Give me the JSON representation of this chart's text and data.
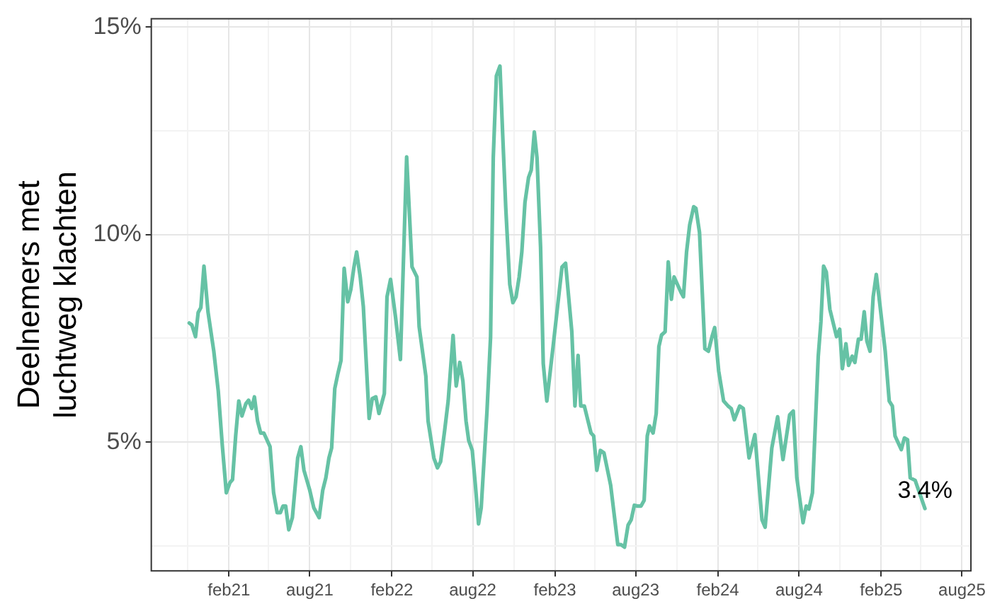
{
  "chart_data": {
    "type": "line",
    "ylabel": "Deelnemers met luchtweg klachten",
    "x": [
      "2020-11-04",
      "2020-11-10",
      "2020-11-18",
      "2020-11-24",
      "2020-11-30",
      "2020-12-07",
      "2020-12-16",
      "2020-12-29",
      "2021-01-08",
      "2021-01-17",
      "2021-01-26",
      "2021-02-03",
      "2021-02-09",
      "2021-02-16",
      "2021-02-23",
      "2021-03-02",
      "2021-03-11",
      "2021-03-17",
      "2021-03-24",
      "2021-03-30",
      "2021-04-06",
      "2021-04-13",
      "2021-04-20",
      "2021-05-04",
      "2021-05-12",
      "2021-05-20",
      "2021-05-27",
      "2021-06-02",
      "2021-06-08",
      "2021-06-15",
      "2021-06-23",
      "2021-07-05",
      "2021-07-12",
      "2021-07-19",
      "2021-08-01",
      "2021-08-10",
      "2021-08-22",
      "2021-08-30",
      "2021-09-06",
      "2021-09-13",
      "2021-09-19",
      "2021-09-26",
      "2021-10-03",
      "2021-10-10",
      "2021-10-17",
      "2021-10-25",
      "2021-11-01",
      "2021-11-08",
      "2021-11-14",
      "2021-11-22",
      "2021-11-29",
      "2021-12-12",
      "2021-12-19",
      "2021-12-27",
      "2022-01-03",
      "2022-01-15",
      "2022-01-21",
      "2022-01-29",
      "2022-02-09",
      "2022-02-20",
      "2022-03-06",
      "2022-03-18",
      "2022-03-29",
      "2022-04-03",
      "2022-04-18",
      "2022-04-23",
      "2022-05-06",
      "2022-05-14",
      "2022-05-21",
      "2022-05-30",
      "2022-06-07",
      "2022-06-18",
      "2022-06-25",
      "2022-07-03",
      "2022-07-10",
      "2022-07-17",
      "2022-07-23",
      "2022-07-31",
      "2022-08-07",
      "2022-08-14",
      "2022-08-20",
      "2022-09-02",
      "2022-09-10",
      "2022-09-16",
      "2022-09-23",
      "2022-10-01",
      "2022-10-07",
      "2022-10-14",
      "2022-10-23",
      "2022-10-30",
      "2022-11-06",
      "2022-11-13",
      "2022-11-19",
      "2022-11-26",
      "2022-12-04",
      "2022-12-10",
      "2022-12-17",
      "2022-12-23",
      "2022-12-31",
      "2023-01-06",
      "2023-01-14",
      "2023-01-28",
      "2023-02-07",
      "2023-02-17",
      "2023-02-25",
      "2023-03-11",
      "2023-03-18",
      "2023-03-25",
      "2023-03-31",
      "2023-04-08",
      "2023-04-23",
      "2023-04-29",
      "2023-05-06",
      "2023-05-14",
      "2023-05-22",
      "2023-06-06",
      "2023-06-22",
      "2023-06-29",
      "2023-07-07",
      "2023-07-15",
      "2023-07-22",
      "2023-07-29",
      "2023-08-05",
      "2023-08-13",
      "2023-08-20",
      "2023-08-27",
      "2023-09-01",
      "2023-09-09",
      "2023-09-16",
      "2023-09-22",
      "2023-09-28",
      "2023-10-06",
      "2023-10-13",
      "2023-10-20",
      "2023-10-26",
      "2023-11-10",
      "2023-11-16",
      "2023-11-23",
      "2023-11-30",
      "2023-12-09",
      "2023-12-14",
      "2023-12-22",
      "2024-01-03",
      "2024-01-11",
      "2024-01-19",
      "2024-01-25",
      "2024-02-03",
      "2024-02-14",
      "2024-02-24",
      "2024-03-02",
      "2024-03-09",
      "2024-03-21",
      "2024-03-29",
      "2024-04-11",
      "2024-04-24",
      "2024-05-10",
      "2024-05-17",
      "2024-06-01",
      "2024-06-14",
      "2024-06-26",
      "2024-07-11",
      "2024-07-19",
      "2024-07-27",
      "2024-08-10",
      "2024-08-17",
      "2024-08-23",
      "2024-08-31",
      "2024-09-13",
      "2024-09-19",
      "2024-09-25",
      "2024-10-01",
      "2024-10-09",
      "2024-10-24",
      "2024-10-31",
      "2024-11-06",
      "2024-11-14",
      "2024-11-20",
      "2024-11-28",
      "2024-12-04",
      "2024-12-12",
      "2024-12-18",
      "2024-12-25",
      "2024-12-31",
      "2025-01-07",
      "2025-01-14",
      "2025-01-21",
      "2025-01-29",
      "2025-02-10",
      "2025-02-19",
      "2025-02-26",
      "2025-03-04",
      "2025-03-18",
      "2025-03-25",
      "2025-04-01",
      "2025-04-07",
      "2025-04-18",
      "2025-05-10"
    ],
    "series": [
      {
        "color": "#66c2a5",
        "values": [
          7.87,
          7.82,
          7.54,
          8.12,
          8.24,
          9.24,
          8.14,
          7.19,
          6.23,
          4.93,
          3.78,
          4.02,
          4.1,
          5.15,
          5.99,
          5.63,
          5.93,
          6.01,
          5.81,
          6.09,
          5.51,
          5.22,
          5.22,
          4.89,
          3.78,
          3.3,
          3.3,
          3.46,
          3.46,
          2.89,
          3.18,
          4.62,
          4.89,
          4.32,
          3.84,
          3.42,
          3.18,
          3.84,
          4.14,
          4.62,
          4.86,
          6.29,
          6.65,
          6.97,
          9.19,
          8.38,
          8.68,
          9.22,
          9.58,
          8.98,
          8.26,
          5.57,
          6.05,
          6.09,
          5.69,
          6.17,
          8.5,
          8.92,
          8.02,
          6.99,
          11.87,
          9.22,
          8.98,
          7.78,
          6.59,
          5.51,
          4.62,
          4.38,
          4.53,
          5.27,
          5.99,
          7.57,
          6.35,
          6.92,
          6.47,
          5.51,
          5.04,
          4.8,
          3.96,
          3.03,
          3.42,
          5.75,
          7.54,
          11.85,
          13.82,
          14.06,
          12.44,
          10.65,
          8.8,
          8.36,
          8.5,
          8.98,
          9.58,
          10.77,
          11.37,
          11.55,
          12.47,
          11.85,
          9.7,
          6.89,
          5.99,
          7.3,
          8.26,
          9.22,
          9.31,
          7.66,
          5.87,
          7.09,
          5.87,
          5.87,
          5.22,
          5.15,
          4.32,
          4.8,
          4.74,
          3.96,
          2.53,
          2.53,
          2.47,
          3.0,
          3.13,
          3.48,
          3.46,
          3.46,
          3.6,
          5.15,
          5.39,
          5.22,
          5.69,
          7.3,
          7.58,
          7.66,
          9.34,
          8.44,
          8.98,
          8.62,
          8.5,
          9.58,
          10.23,
          10.67,
          10.63,
          10.05,
          7.25,
          7.19,
          7.54,
          7.76,
          6.71,
          5.99,
          5.87,
          5.81,
          5.54,
          5.87,
          5.81,
          4.62,
          5.18,
          3.13,
          2.95,
          4.86,
          5.61,
          4.58,
          5.66,
          5.75,
          4.14,
          3.06,
          3.46,
          3.39,
          3.78,
          7.07,
          7.9,
          9.24,
          9.1,
          8.2,
          7.54,
          7.72,
          6.77,
          7.37,
          6.85,
          7.07,
          6.92,
          7.48,
          7.48,
          8.14,
          7.43,
          7.19,
          8.5,
          9.04,
          8.32,
          7.19,
          5.99,
          5.87,
          5.15,
          4.82,
          5.1,
          5.06,
          4.14,
          4.08,
          3.4
        ]
      }
    ],
    "xlim": [
      "2020-08-11",
      "2025-08-21"
    ],
    "xticks": [
      {
        "value": "2020-11-01",
        "label": null
      },
      {
        "value": "2021-02-01",
        "label": "feb21"
      },
      {
        "value": "2021-05-01",
        "label": null
      },
      {
        "value": "2021-08-01",
        "label": "aug21"
      },
      {
        "value": "2021-11-01",
        "label": null
      },
      {
        "value": "2022-02-01",
        "label": "feb22"
      },
      {
        "value": "2022-05-01",
        "label": null
      },
      {
        "value": "2022-08-01",
        "label": "aug22"
      },
      {
        "value": "2022-11-01",
        "label": null
      },
      {
        "value": "2023-02-01",
        "label": "feb23"
      },
      {
        "value": "2023-05-01",
        "label": null
      },
      {
        "value": "2023-08-01",
        "label": "aug23"
      },
      {
        "value": "2023-11-01",
        "label": null
      },
      {
        "value": "2024-02-01",
        "label": "feb24"
      },
      {
        "value": "2024-05-01",
        "label": null
      },
      {
        "value": "2024-08-01",
        "label": "aug24"
      },
      {
        "value": "2024-11-01",
        "label": null
      },
      {
        "value": "2025-02-01",
        "label": "feb25"
      },
      {
        "value": "2025-05-01",
        "label": null
      },
      {
        "value": "2025-08-01",
        "label": "aug25"
      }
    ],
    "ylim": [
      1.9,
      15.2
    ],
    "yticks": [
      {
        "value": 2.5,
        "label": null
      },
      {
        "value": 5,
        "label": "5%"
      },
      {
        "value": 7.5,
        "label": null
      },
      {
        "value": 10,
        "label": "10%"
      },
      {
        "value": 12.5,
        "label": null
      },
      {
        "value": 15,
        "label": "15%"
      }
    ],
    "annotations": [
      {
        "text": "3.4%",
        "x": "2025-05-10",
        "y": 3.4
      }
    ],
    "grid": true,
    "marker": "none",
    "line_style": "solid",
    "legend": false
  }
}
